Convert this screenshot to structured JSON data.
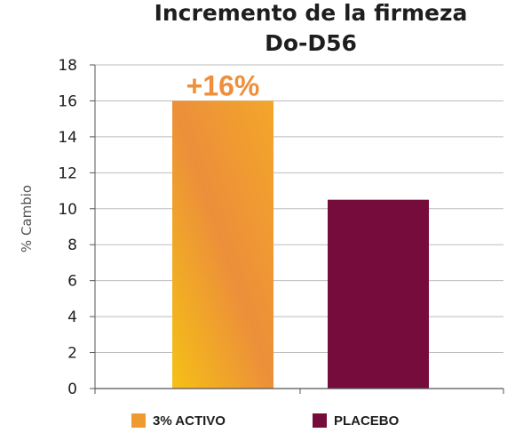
{
  "chart_data": {
    "type": "bar",
    "title_lines": [
      "Incremento de la firmeza",
      "Do-D56"
    ],
    "xlabel": "",
    "ylabel": "% Cambio",
    "ylim": [
      0,
      18
    ],
    "yticks": [
      "0",
      "2",
      "4",
      "6",
      "8",
      "10",
      "12",
      "14",
      "16",
      "18"
    ],
    "grid": true,
    "legend_placement": "bottom",
    "categories": [
      "3% ACTIVO",
      "PLACEBO"
    ],
    "values": [
      16,
      10.5
    ],
    "data_labels": [
      "+16%",
      ""
    ],
    "colors": {
      "activo_gradient_start": "#f5c016",
      "activo_gradient_mid": "#ec8f3a",
      "activo_gradient_end": "#f3a62a",
      "placebo": "#760c3c",
      "data_label": "#ef8f3b",
      "legend_activo": "#ef9a2e",
      "grid": "#bdbdbd",
      "axis": "#555555"
    }
  }
}
